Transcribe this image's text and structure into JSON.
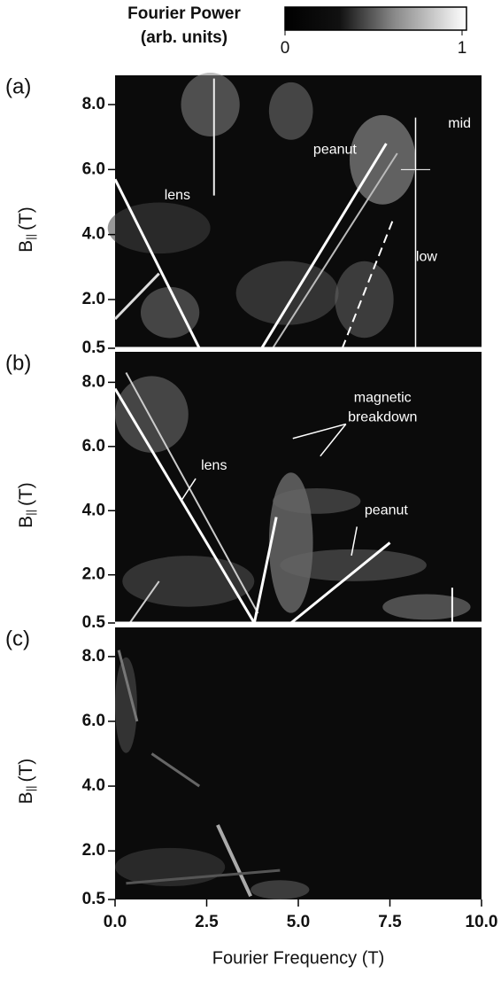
{
  "colorbar": {
    "title": [
      "Fourier Power",
      "(arb. units)"
    ],
    "lim": [
      0,
      1
    ],
    "ticks": [
      0,
      1
    ]
  },
  "chart_data": [
    {
      "type": "heatmap",
      "panel": "(a)",
      "ylabel": {
        "symbol": "B",
        "subscript": "||",
        "unit": "(T)"
      },
      "ylim": [
        0.5,
        8.9
      ],
      "yticks": [
        0.5,
        {
          "value": 2,
          "label": "2.0"
        },
        {
          "value": 4,
          "label": "4.0"
        },
        {
          "value": 6,
          "label": "6.0"
        },
        {
          "value": 8,
          "label": "8.0"
        }
      ],
      "annotations": [
        "lens",
        "peanut",
        "mid",
        "low"
      ]
    },
    {
      "type": "heatmap",
      "panel": "(b)",
      "ylabel": {
        "symbol": "B",
        "subscript": "||",
        "unit": "(T)"
      },
      "ylim": [
        0.5,
        8.95
      ],
      "yticks": [
        0.5,
        {
          "value": 2,
          "label": "2.0"
        },
        {
          "value": 4,
          "label": "4.0"
        },
        {
          "value": 6,
          "label": "6.0"
        },
        {
          "value": 8,
          "label": "8.0"
        }
      ],
      "annotations": [
        "magnetic",
        "breakdown",
        "lens",
        "peanut"
      ]
    },
    {
      "type": "heatmap",
      "panel": "(c)",
      "ylabel": {
        "symbol": "B",
        "subscript": "||",
        "unit": "(T)"
      },
      "ylim": [
        0.5,
        8.9
      ],
      "yticks": [
        0.5,
        {
          "value": 2,
          "label": "2.0"
        },
        {
          "value": 4,
          "label": "4.0"
        },
        {
          "value": 6,
          "label": "6.0"
        },
        {
          "value": 8,
          "label": "8.0"
        }
      ],
      "xlabel": "Fourier Frequency (T)",
      "xlim": [
        0,
        10
      ],
      "xticks": [
        {
          "value": 0,
          "label": "0.0"
        },
        2.5,
        {
          "value": 5,
          "label": "5.0"
        },
        7.5,
        {
          "value": 10,
          "label": "10.0"
        }
      ],
      "annotations": []
    }
  ]
}
